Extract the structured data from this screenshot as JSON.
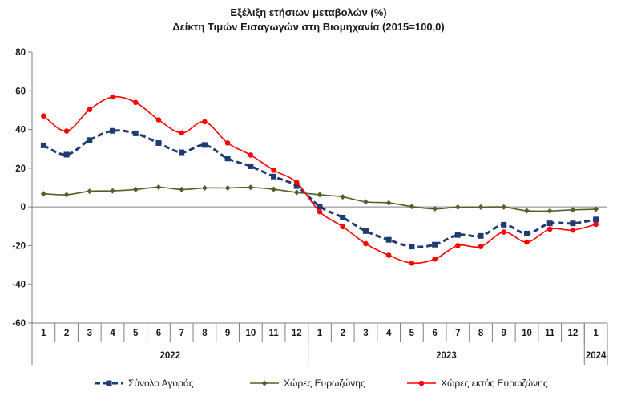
{
  "chart_data": {
    "type": "line",
    "title": "Εξέλιξη ετήσιων μεταβολών (%)",
    "subtitle": "Δείκτη Τιμών Εισαγωγών στη Βιομηχανία (2015=100,0)",
    "categories": [
      "1",
      "2",
      "3",
      "4",
      "5",
      "6",
      "7",
      "8",
      "9",
      "10",
      "11",
      "12",
      "1",
      "2",
      "3",
      "4",
      "5",
      "6",
      "7",
      "8",
      "9",
      "10",
      "11",
      "12",
      "1"
    ],
    "years": [
      {
        "label": "2022",
        "months": 12
      },
      {
        "label": "2023",
        "months": 12
      },
      {
        "label": "2024",
        "months": 1
      }
    ],
    "ylim": [
      -60,
      80
    ],
    "yticks": [
      -60,
      -40,
      -20,
      0,
      20,
      40,
      60,
      80
    ],
    "grid": false,
    "legend": "bottom",
    "series": [
      {
        "name": "Σύνολο Αγοράς",
        "color": "#1f3b73",
        "marker": "square",
        "dash": true,
        "values": [
          31.8,
          27.0,
          34.5,
          39.3,
          38.0,
          33.0,
          28.2,
          32.0,
          25.0,
          21.0,
          15.7,
          10.8,
          0.2,
          -5.5,
          -12.5,
          -17.0,
          -20.5,
          -19.5,
          -14.5,
          -15.0,
          -9.2,
          -13.8,
          -8.5,
          -8.5,
          -6.5
        ]
      },
      {
        "name": "Χώρες Ευρωζώνης",
        "color": "#4f6228",
        "marker": "diamond",
        "dash": false,
        "values": [
          6.8,
          6.3,
          8.1,
          8.3,
          9.0,
          10.2,
          9.0,
          9.8,
          9.8,
          10.1,
          9.1,
          7.5,
          6.3,
          5.2,
          2.6,
          2.1,
          0.2,
          -1.0,
          -0.1,
          -0.1,
          -0.1,
          -2.0,
          -2.1,
          -1.5,
          -1.2
        ]
      },
      {
        "name": "Χώρες εκτός Ευρωζώνης",
        "color": "#ff0000",
        "marker": "circle",
        "dash": false,
        "values": [
          47.0,
          39.2,
          50.3,
          56.8,
          54.0,
          45.0,
          38.2,
          44.0,
          33.0,
          26.8,
          19.0,
          12.6,
          -2.5,
          -10.2,
          -19.0,
          -25.0,
          -29.0,
          -27.0,
          -20.0,
          -20.5,
          -13.0,
          -18.2,
          -11.5,
          -12.0,
          -9.0
        ]
      }
    ]
  }
}
